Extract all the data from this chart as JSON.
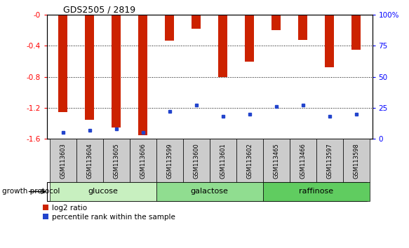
{
  "title": "GDS2505 / 2819",
  "samples": [
    "GSM113603",
    "GSM113604",
    "GSM113605",
    "GSM113606",
    "GSM113599",
    "GSM113600",
    "GSM113601",
    "GSM113602",
    "GSM113465",
    "GSM113466",
    "GSM113597",
    "GSM113598"
  ],
  "log2_ratios": [
    -1.25,
    -1.35,
    -1.45,
    -1.55,
    -0.33,
    -0.18,
    -0.8,
    -0.6,
    -0.2,
    -0.32,
    -0.68,
    -0.45
  ],
  "percentile_ranks": [
    5,
    7,
    8,
    5,
    22,
    27,
    18,
    20,
    26,
    27,
    18,
    20
  ],
  "groups": [
    {
      "name": "glucose",
      "start": 0,
      "end": 4,
      "color": "#c8f0c0"
    },
    {
      "name": "galactose",
      "start": 4,
      "end": 8,
      "color": "#90dd90"
    },
    {
      "name": "raffinose",
      "start": 8,
      "end": 12,
      "color": "#60cc60"
    }
  ],
  "ylim_left": [
    -1.6,
    0.0
  ],
  "ylim_right": [
    0,
    100
  ],
  "right_ticks": [
    0,
    25,
    50,
    75,
    100
  ],
  "right_tick_labels": [
    "0",
    "25",
    "50",
    "75",
    "100%"
  ],
  "left_ticks": [
    -1.6,
    -1.2,
    -0.8,
    -0.4,
    0.0
  ],
  "left_tick_labels": [
    "-1.6",
    "-1.2",
    "-0.8",
    "-0.4",
    "-0"
  ],
  "bar_color": "#cc2200",
  "dot_color": "#2244cc",
  "bar_width": 0.35,
  "legend_red": "log2 ratio",
  "legend_blue": "percentile rank within the sample",
  "growth_label": "growth protocol",
  "label_area_color": "#cccccc"
}
